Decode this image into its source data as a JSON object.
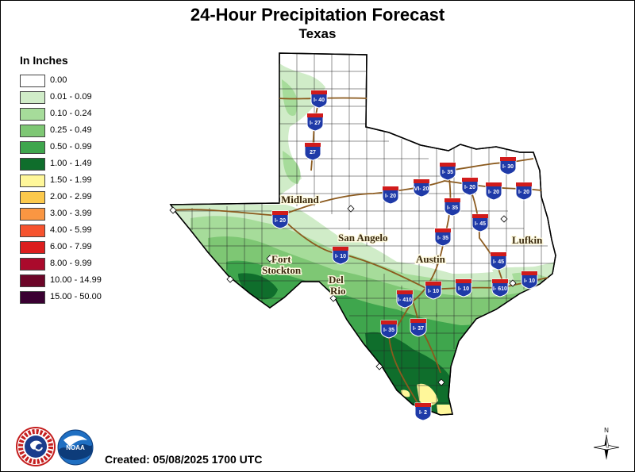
{
  "title": "24-Hour Precipitation Forecast",
  "subtitle": "Texas",
  "legend": {
    "title": "In Inches",
    "items": [
      {
        "label": "0.00",
        "color": "#ffffff"
      },
      {
        "label": "0.01 - 0.09",
        "color": "#d0ecc8"
      },
      {
        "label": "0.10 - 0.24",
        "color": "#a6dc9a"
      },
      {
        "label": "0.25 - 0.49",
        "color": "#7ec774"
      },
      {
        "label": "0.50 - 0.99",
        "color": "#3fa64d"
      },
      {
        "label": "1.00 - 1.49",
        "color": "#0f6e2c"
      },
      {
        "label": "1.50 - 1.99",
        "color": "#fff79a"
      },
      {
        "label": "2.00 - 2.99",
        "color": "#fcc94c"
      },
      {
        "label": "3.00 - 3.99",
        "color": "#fa9642"
      },
      {
        "label": "4.00 - 5.99",
        "color": "#f6532e"
      },
      {
        "label": "6.00 - 7.99",
        "color": "#dc1e1e"
      },
      {
        "label": "8.00 - 9.99",
        "color": "#aa0a2c"
      },
      {
        "label": "10.00 - 14.99",
        "color": "#6c0628"
      },
      {
        "label": "15.00 - 50.00",
        "color": "#3a0032"
      }
    ]
  },
  "cities": [
    {
      "name": "Midland"
    },
    {
      "name": "San Angelo"
    },
    {
      "name": "Fort"
    },
    {
      "name": "Stockton"
    },
    {
      "name": "Del"
    },
    {
      "name": "Rio"
    },
    {
      "name": "Austin"
    },
    {
      "name": "Lufkin"
    }
  ],
  "highways": [
    {
      "label": "I- 40"
    },
    {
      "label": "I- 27"
    },
    {
      "label": "27"
    },
    {
      "label": "I- 20"
    },
    {
      "label": "I- 20"
    },
    {
      "label": "I- 10"
    },
    {
      "label": "I- 35"
    },
    {
      "label": "I- 30"
    },
    {
      "label": "I- 20"
    },
    {
      "label": "I- 20"
    },
    {
      "label": "I- 20"
    },
    {
      "label": "I- 35"
    },
    {
      "label": "I- 45"
    },
    {
      "label": "I- 35"
    },
    {
      "label": "I- 45"
    },
    {
      "label": "I- 10"
    },
    {
      "label": "I- 10"
    },
    {
      "label": "I- 10"
    },
    {
      "label": "I- 610"
    },
    {
      "label": "I- 410"
    },
    {
      "label": "I- 37"
    },
    {
      "label": "I- 35"
    },
    {
      "label": "I- 2"
    },
    {
      "label": "VI- 20"
    }
  ],
  "created": "Created: 05/08/2025 1700 UTC",
  "logos": {
    "nws_text": "NATIONAL WEATHER SERVICE",
    "noaa_text": "NOAA"
  },
  "compass": {
    "north": "N"
  }
}
